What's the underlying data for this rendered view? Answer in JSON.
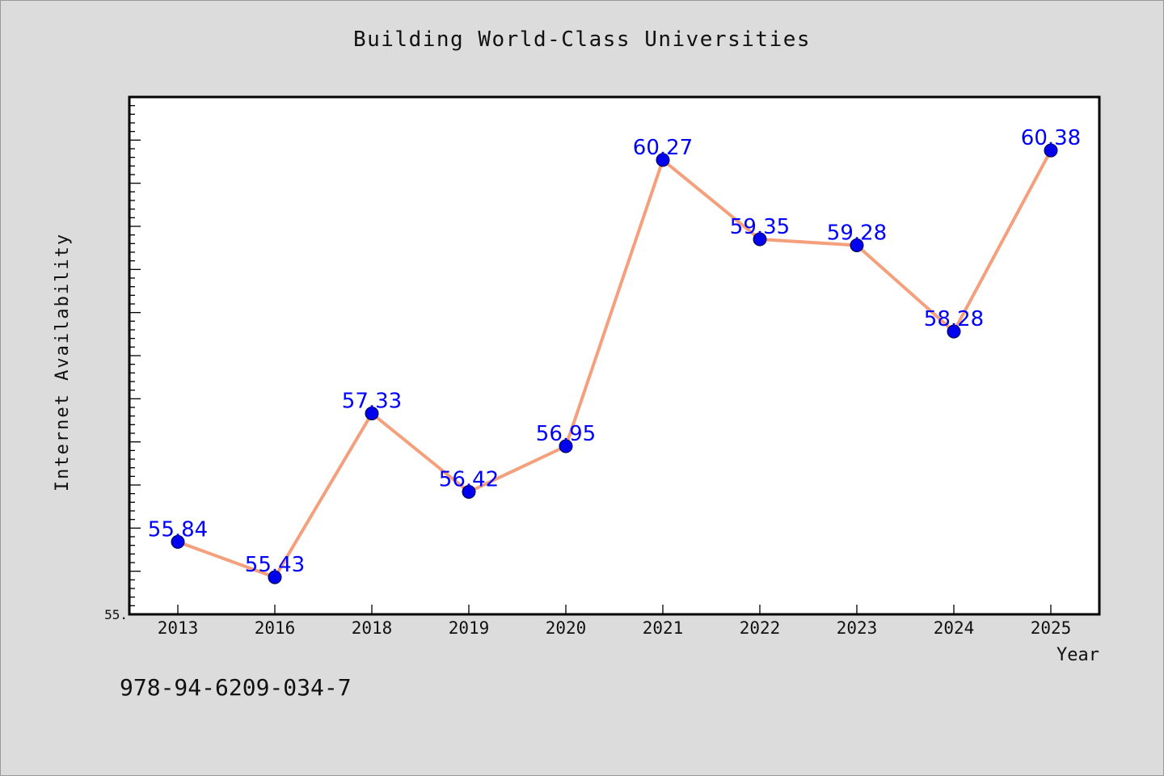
{
  "chart_data": {
    "type": "line",
    "title": "Building World-Class Universities",
    "xlabel": "Year",
    "ylabel": "Internet Availability",
    "categories": [
      "2013",
      "2016",
      "2018",
      "2019",
      "2020",
      "2021",
      "2022",
      "2023",
      "2024",
      "2025"
    ],
    "series": [
      {
        "values": [
          55.84,
          55.43,
          57.33,
          56.42,
          56.95,
          60.27,
          59.35,
          59.28,
          58.28,
          60.38
        ],
        "labels": [
          "55.84",
          "55.43",
          "57.33",
          "56.42",
          "56.95",
          "60.27",
          "59.35",
          "59.28",
          "58.28",
          "60.38"
        ]
      }
    ],
    "y_tick_labels": [
      "55."
    ],
    "ylim": [
      55.0,
      61.0
    ],
    "y_minor_step": 0.1,
    "y_major_step": 0.5,
    "grid": false,
    "colors": {
      "line": "#f4a07c",
      "marker": "#0000ee",
      "data_label": "#0000ff",
      "plot_background": "#ffffff",
      "page_background": "#dcdcdc"
    }
  },
  "isbn": "978-94-6209-034-7"
}
